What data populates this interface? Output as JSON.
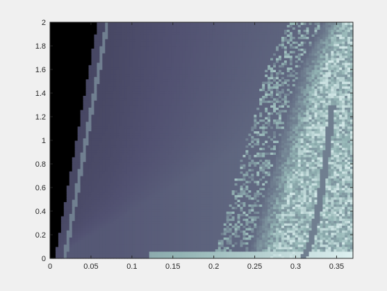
{
  "chart_data": {
    "type": "heatmap",
    "title": "",
    "xlabel": "",
    "ylabel": "",
    "xlim": [
      0,
      0.37
    ],
    "ylim": [
      0,
      2
    ],
    "x_ticks": [
      "0",
      "0.05",
      "0.1",
      "0.15",
      "0.2",
      "0.25",
      "0.3",
      "0.35"
    ],
    "y_ticks": [
      "0",
      "0.2",
      "0.4",
      "0.6",
      "0.8",
      "1",
      "1.2",
      "1.4",
      "1.6",
      "1.8",
      "2"
    ],
    "colormap": "bone",
    "grid": false,
    "colors": {
      "background": "#f0f0f0",
      "axes_line": "#262626",
      "low": "#000000",
      "mid": "#54546e",
      "high": "#c5e0da"
    }
  }
}
